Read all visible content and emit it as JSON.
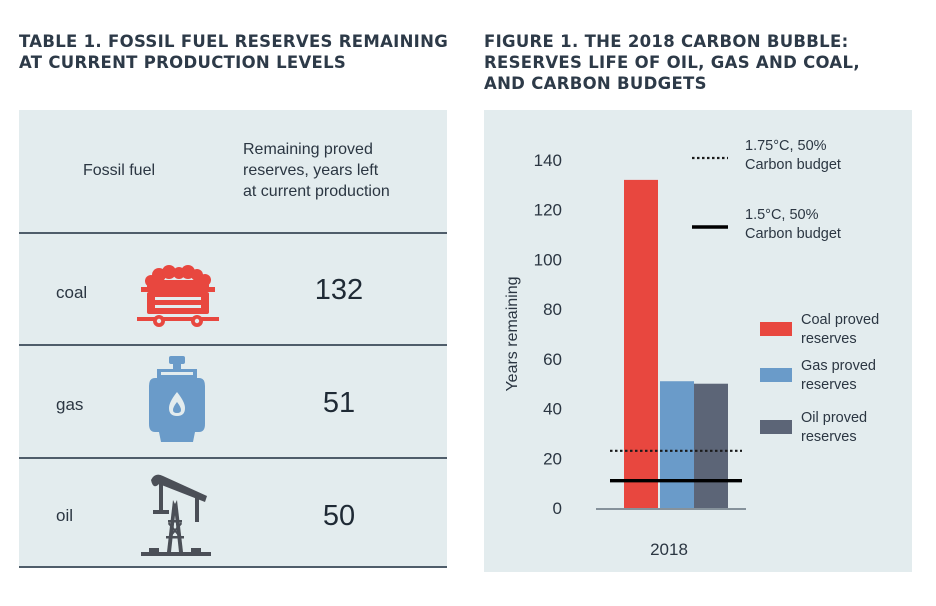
{
  "table": {
    "title_lines": [
      "TABLE 1. FOSSIL FUEL RESERVES REMAINING",
      "AT CURRENT PRODUCTION LEVELS"
    ],
    "header_col1": "Fossil fuel",
    "header_col2_lines": [
      "Remaining proved",
      "reserves, years left",
      "at current production"
    ],
    "rows": [
      {
        "fuel": "coal",
        "value": "132",
        "icon": "coal-cart-icon",
        "icon_color": "#e8473f"
      },
      {
        "fuel": "gas",
        "value": "51",
        "icon": "gas-cylinder-icon",
        "icon_color": "#6a9bc9"
      },
      {
        "fuel": "oil",
        "value": "50",
        "icon": "oil-pump-icon",
        "icon_color": "#4b4f57"
      }
    ]
  },
  "figure": {
    "title_lines": [
      "FIGURE 1.  THE 2018 CARBON BUBBLE:",
      "RESERVES LIFE OF OIL, GAS AND COAL,",
      "AND CARBON BUDGETS"
    ]
  },
  "chart_data": {
    "type": "bar",
    "categories": [
      "2018"
    ],
    "ylabel": "Years remaining",
    "ylim": [
      0,
      140
    ],
    "yticks": [
      0,
      20,
      40,
      60,
      80,
      100,
      120,
      140
    ],
    "series": [
      {
        "name_lines": [
          "Coal proved",
          "reserves"
        ],
        "values": [
          132
        ],
        "color": "#e8473f"
      },
      {
        "name_lines": [
          "Gas proved",
          "reserves"
        ],
        "values": [
          51
        ],
        "color": "#6a9bc9"
      },
      {
        "name_lines": [
          "Oil proved",
          "reserves"
        ],
        "values": [
          50
        ],
        "color": "#5c6577"
      }
    ],
    "reference_lines": [
      {
        "name_lines": [
          "1.75°C, 50%",
          "Carbon budget"
        ],
        "value": 23,
        "style": "dotted",
        "color": "#1a1a1a"
      },
      {
        "name_lines": [
          "1.5°C, 50%",
          "Carbon budget"
        ],
        "value": 11,
        "style": "solid",
        "color": "#000000"
      }
    ]
  }
}
